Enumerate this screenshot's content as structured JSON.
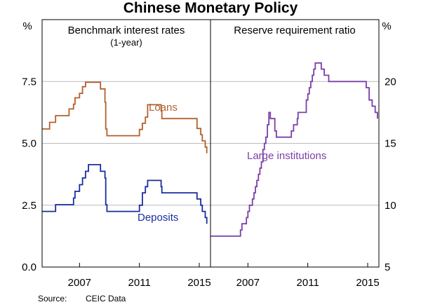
{
  "title": "Chinese Monetary Policy",
  "source_label": "Source:",
  "source_value": "CEIC Data",
  "colors": {
    "loans": "#B3602C",
    "deposits": "#1A2D9E",
    "rrr": "#7B3FA8",
    "grid": "#BBBBBB"
  },
  "chart_data": [
    {
      "type": "line",
      "title": "Benchmark interest rates",
      "subtitle": "(1-year)",
      "unit": "%",
      "xlim": [
        2004.5,
        2015.75
      ],
      "ylim": [
        0,
        10
      ],
      "yticks": [
        0,
        2.5,
        5,
        7.5
      ],
      "ytick_labels": [
        "0.0",
        "2.5",
        "5.0",
        "7.5"
      ],
      "xticks": [
        2007,
        2011,
        2015
      ],
      "xtick_labels": [
        "2007",
        "2011",
        "2015"
      ],
      "series": [
        {
          "name": "Loans",
          "step": true,
          "x": [
            2004.5,
            2004.8,
            2005.0,
            2005.4,
            2006.3,
            2006.6,
            2006.7,
            2007.0,
            2007.2,
            2007.4,
            2007.6,
            2007.8,
            2008.2,
            2008.4,
            2008.7,
            2008.75,
            2008.83,
            2010.8,
            2011.0,
            2011.2,
            2011.4,
            2011.55,
            2012.45,
            2012.5,
            2014.85,
            2015.1,
            2015.2,
            2015.4,
            2015.5
          ],
          "y": [
            5.58,
            5.58,
            5.85,
            6.12,
            6.39,
            6.58,
            6.84,
            7.02,
            7.29,
            7.47,
            7.47,
            7.47,
            7.47,
            7.2,
            6.66,
            5.58,
            5.31,
            5.31,
            5.56,
            5.81,
            6.06,
            6.56,
            6.31,
            6.0,
            5.6,
            5.35,
            5.1,
            4.85,
            4.6
          ]
        },
        {
          "name": "Deposits",
          "step": true,
          "x": [
            2004.5,
            2004.8,
            2005.0,
            2005.4,
            2006.3,
            2006.6,
            2006.7,
            2007.0,
            2007.2,
            2007.4,
            2007.6,
            2008.2,
            2008.4,
            2008.7,
            2008.75,
            2008.83,
            2010.8,
            2011.0,
            2011.2,
            2011.4,
            2011.55,
            2012.45,
            2012.5,
            2014.85,
            2015.1,
            2015.2,
            2015.4,
            2015.5
          ],
          "y": [
            2.25,
            2.25,
            2.25,
            2.52,
            2.52,
            2.79,
            3.06,
            3.33,
            3.6,
            3.87,
            4.14,
            4.14,
            3.87,
            3.6,
            2.52,
            2.25,
            2.25,
            2.5,
            3.0,
            3.25,
            3.5,
            3.25,
            3.0,
            2.75,
            2.5,
            2.25,
            2.0,
            1.75
          ]
        }
      ]
    },
    {
      "type": "line",
      "title": "Reserve requirement ratio",
      "unit": "%",
      "xlim": [
        2004.5,
        2015.75
      ],
      "ylim": [
        5,
        25
      ],
      "yticks": [
        5,
        10,
        15,
        20
      ],
      "ytick_labels": [
        "5",
        "10",
        "15",
        "20"
      ],
      "xticks": [
        2007,
        2011,
        2015
      ],
      "xtick_labels": [
        "2007",
        "2011",
        "2015"
      ],
      "series": [
        {
          "name": "Large institutions",
          "step": true,
          "x": [
            2004.5,
            2006.5,
            2006.6,
            2006.9,
            2007.0,
            2007.1,
            2007.3,
            2007.4,
            2007.5,
            2007.6,
            2007.7,
            2007.8,
            2007.9,
            2008.0,
            2008.1,
            2008.2,
            2008.3,
            2008.4,
            2008.5,
            2008.8,
            2008.9,
            2009.9,
            2010.05,
            2010.3,
            2010.35,
            2010.9,
            2011.0,
            2011.1,
            2011.2,
            2011.3,
            2011.4,
            2011.5,
            2011.9,
            2012.1,
            2012.4,
            2014.9,
            2015.1,
            2015.3,
            2015.5,
            2015.65
          ],
          "y": [
            7.5,
            8.0,
            8.5,
            9.0,
            9.5,
            10.0,
            10.5,
            11.0,
            11.5,
            12.0,
            12.5,
            13.0,
            13.5,
            14.5,
            15.0,
            15.5,
            16.5,
            17.5,
            17.0,
            16.0,
            15.5,
            16.0,
            16.5,
            17.0,
            17.5,
            18.5,
            19.0,
            19.5,
            20.0,
            20.5,
            21.0,
            21.5,
            21.0,
            20.5,
            20.0,
            19.5,
            18.5,
            18.0,
            17.5,
            17.0
          ]
        }
      ]
    }
  ]
}
